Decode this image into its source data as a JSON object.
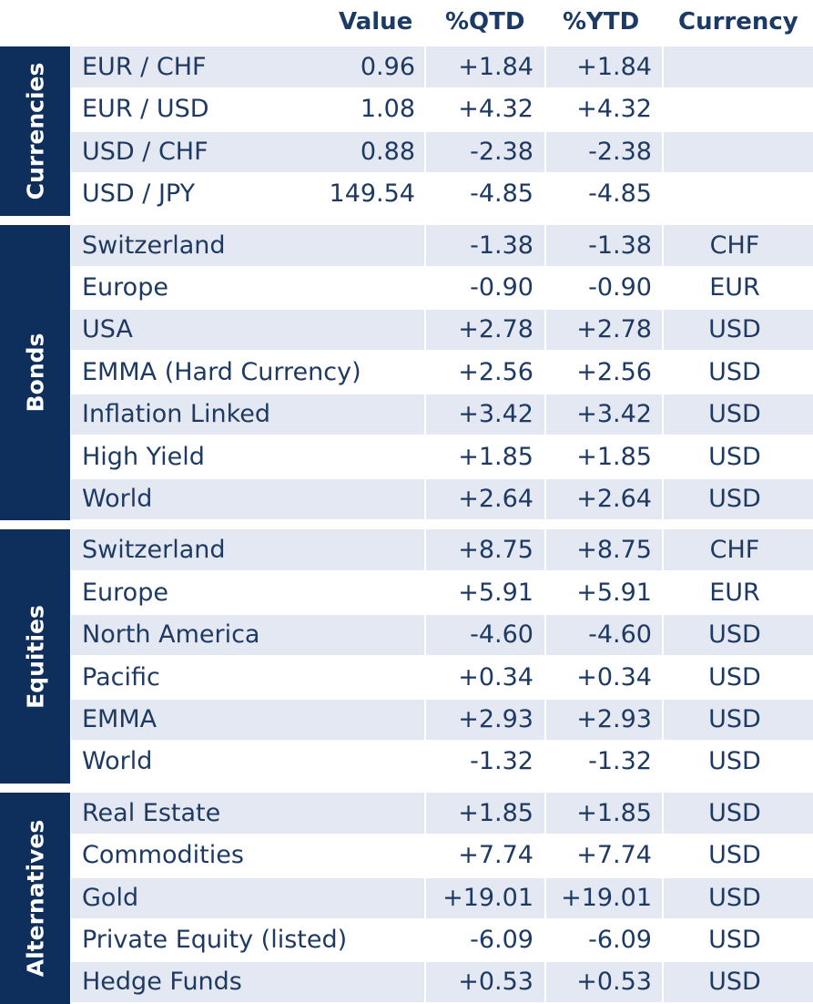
{
  "chart_data": {
    "type": "table",
    "columns": [
      "Value",
      "%QTD",
      "%YTD",
      "Currency"
    ],
    "groups": [
      {
        "name": "Currencies",
        "rows": [
          {
            "label": "EUR / CHF",
            "value": "0.96",
            "qtd": "+1.84",
            "ytd": "+1.84",
            "currency": ""
          },
          {
            "label": "EUR / USD",
            "value": "1.08",
            "qtd": "+4.32",
            "ytd": "+4.32",
            "currency": ""
          },
          {
            "label": "USD / CHF",
            "value": "0.88",
            "qtd": "-2.38",
            "ytd": "-2.38",
            "currency": ""
          },
          {
            "label": "USD / JPY",
            "value": "149.54",
            "qtd": "-4.85",
            "ytd": "-4.85",
            "currency": ""
          }
        ]
      },
      {
        "name": "Bonds",
        "rows": [
          {
            "label": "Switzerland",
            "value": "",
            "qtd": "-1.38",
            "ytd": "-1.38",
            "currency": "CHF"
          },
          {
            "label": "Europe",
            "value": "",
            "qtd": "-0.90",
            "ytd": "-0.90",
            "currency": "EUR"
          },
          {
            "label": "USA",
            "value": "",
            "qtd": "+2.78",
            "ytd": "+2.78",
            "currency": "USD"
          },
          {
            "label": "EMMA (Hard Currency)",
            "value": "",
            "qtd": "+2.56",
            "ytd": "+2.56",
            "currency": "USD"
          },
          {
            "label": "Inflation Linked",
            "value": "",
            "qtd": "+3.42",
            "ytd": "+3.42",
            "currency": "USD"
          },
          {
            "label": "High Yield",
            "value": "",
            "qtd": "+1.85",
            "ytd": "+1.85",
            "currency": "USD"
          },
          {
            "label": "World",
            "value": "",
            "qtd": "+2.64",
            "ytd": "+2.64",
            "currency": "USD"
          }
        ]
      },
      {
        "name": "Equities",
        "rows": [
          {
            "label": "Switzerland",
            "value": "",
            "qtd": "+8.75",
            "ytd": "+8.75",
            "currency": "CHF"
          },
          {
            "label": "Europe",
            "value": "",
            "qtd": "+5.91",
            "ytd": "+5.91",
            "currency": "EUR"
          },
          {
            "label": "North America",
            "value": "",
            "qtd": "-4.60",
            "ytd": "-4.60",
            "currency": "USD"
          },
          {
            "label": "Pacific",
            "value": "",
            "qtd": "+0.34",
            "ytd": "+0.34",
            "currency": "USD"
          },
          {
            "label": "EMMA",
            "value": "",
            "qtd": "+2.93",
            "ytd": "+2.93",
            "currency": "USD"
          },
          {
            "label": "World",
            "value": "",
            "qtd": "-1.32",
            "ytd": "-1.32",
            "currency": "USD"
          }
        ]
      },
      {
        "name": "Alternatives",
        "rows": [
          {
            "label": "Real Estate",
            "value": "",
            "qtd": "+1.85",
            "ytd": "+1.85",
            "currency": "USD"
          },
          {
            "label": "Commodities",
            "value": "",
            "qtd": "+7.74",
            "ytd": "+7.74",
            "currency": "USD"
          },
          {
            "label": "Gold",
            "value": "",
            "qtd": "+19.01",
            "ytd": "+19.01",
            "currency": "USD"
          },
          {
            "label": "Private Equity (listed)",
            "value": "",
            "qtd": "-6.09",
            "ytd": "-6.09",
            "currency": "USD"
          },
          {
            "label": "Hedge Funds",
            "value": "",
            "qtd": "+0.53",
            "ytd": "+0.53",
            "currency": "USD"
          }
        ]
      }
    ]
  },
  "colors": {
    "group_bar": "#0e2e5c",
    "row_shade": "#e4e8f2",
    "header_text": "#1b3a66",
    "body_text": "#1e3a63"
  }
}
